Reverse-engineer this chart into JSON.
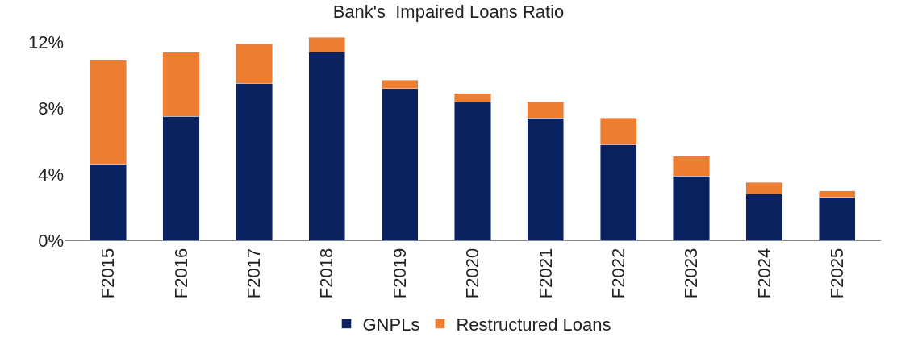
{
  "chart_data": {
    "type": "bar",
    "title": "Bank's  Impaired Loans Ratio",
    "stacked": true,
    "legend": "bottom",
    "categories": [
      "F2015",
      "F2016",
      "F2017",
      "F2018",
      "F2019",
      "F2020",
      "F2021",
      "F2022",
      "F2023",
      "F2024",
      "F2025"
    ],
    "series": [
      {
        "name": "GNPLs",
        "color": "#0a2260",
        "values": [
          4.6,
          7.5,
          9.5,
          11.4,
          9.2,
          8.4,
          7.4,
          5.8,
          3.9,
          2.8,
          2.6
        ]
      },
      {
        "name": "Restructured Loans",
        "color": "#ed7d31",
        "values": [
          6.3,
          3.9,
          2.4,
          0.9,
          0.5,
          0.5,
          1.0,
          1.6,
          1.2,
          0.7,
          0.4
        ]
      }
    ],
    "ylim": [
      0,
      12.6
    ],
    "yticks": [
      {
        "value": 0,
        "label": "0%"
      },
      {
        "value": 4,
        "label": "4%"
      },
      {
        "value": 8,
        "label": "8%"
      },
      {
        "value": 12,
        "label": "12%"
      }
    ]
  }
}
